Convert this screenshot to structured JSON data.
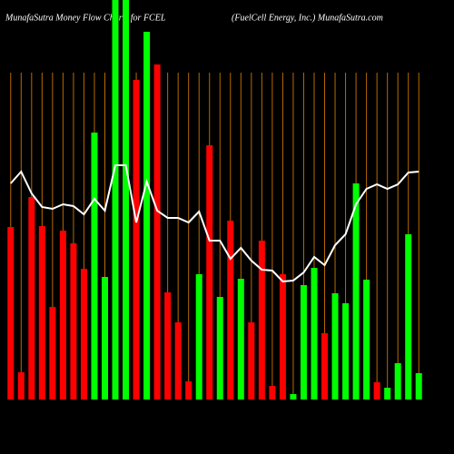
{
  "chart_data": {
    "type": "bar",
    "title": "MunafaSutra  Money Flow  Charts for FCEL",
    "subtitle": "(FuelCell Energy,  Inc.) MunafaSutra.com",
    "categories": [
      null,
      null,
      null,
      null,
      null,
      null,
      null,
      null,
      null,
      null,
      null,
      null,
      null,
      null,
      null,
      null,
      null,
      null,
      null,
      null,
      null,
      null,
      null,
      null,
      null,
      null,
      null,
      null,
      null,
      null,
      null,
      null,
      null,
      null,
      null,
      null,
      null,
      null,
      null,
      null
    ],
    "values": [
      190,
      30,
      223,
      191,
      102,
      186,
      172,
      144,
      294,
      135,
      440,
      440,
      352,
      405,
      369,
      118,
      85,
      20,
      138,
      280,
      113,
      197,
      133,
      85,
      175,
      15,
      138,
      6,
      126,
      145,
      73,
      117,
      106,
      238,
      132,
      19,
      13,
      40,
      182,
      29
    ],
    "colors": [
      "#ff0000",
      "#ff0000",
      "#ff0000",
      "#ff0000",
      "#ff0000",
      "#ff0000",
      "#ff0000",
      "#ff0000",
      "#00ff00",
      "#00ff00",
      "#00ff00",
      "#00ff00",
      "#ff0000",
      "#00ff00",
      "#ff0000",
      "#ff0000",
      "#ff0000",
      "#ff0000",
      "#00ff00",
      "#ff0000",
      "#00ff00",
      "#ff0000",
      "#00ff00",
      "#ff0000",
      "#ff0000",
      "#ff0000",
      "#ff0000",
      "#00ff00",
      "#00ff00",
      "#00ff00",
      "#ff0000",
      "#00ff00",
      "#00ff00",
      "#00ff00",
      "#00ff00",
      "#ff0000",
      "#00ff00",
      "#00ff00",
      "#00ff00",
      "#00ff00"
    ],
    "line": {
      "color": "#ffffff",
      "values": [
        238,
        251,
        227,
        212,
        210,
        215,
        213,
        204,
        221,
        208,
        258,
        258,
        195,
        240,
        208,
        200,
        200,
        195,
        207,
        175,
        175,
        155,
        167,
        153,
        143,
        142,
        130,
        131,
        140,
        157,
        148,
        170,
        182,
        215,
        232,
        237,
        232,
        237,
        250,
        251
      ]
    },
    "ylim": [
      0,
      440
    ],
    "grid": true,
    "grid_color": "#b86a00"
  }
}
